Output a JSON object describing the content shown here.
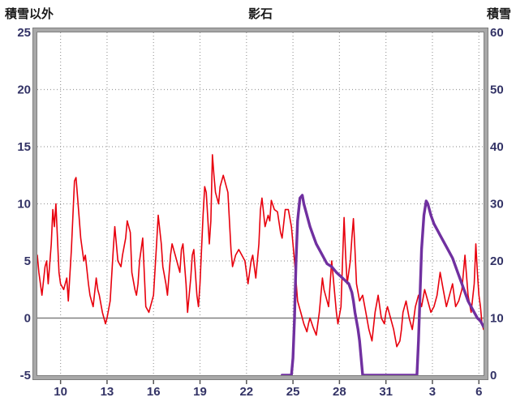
{
  "chart_data": {
    "type": "line",
    "title": "影石",
    "left_axis": {
      "title": "積雪以外",
      "min": -5,
      "max": 25,
      "ticks": [
        25,
        20,
        15,
        10,
        5,
        0,
        -5
      ]
    },
    "right_axis": {
      "title": "積雪",
      "min": 0,
      "max": 60,
      "ticks": [
        60,
        50,
        40,
        30,
        20,
        10,
        0
      ]
    },
    "x_axis": {
      "min": 8.5,
      "max": 37.3,
      "tick_values": [
        10,
        13,
        16,
        19,
        22,
        25,
        28,
        31,
        34,
        37
      ],
      "tick_labels": [
        "10",
        "13",
        "16",
        "19",
        "22",
        "25",
        "28",
        "31",
        "3",
        "6"
      ]
    },
    "grid": {
      "horizontal": true,
      "vertical": true,
      "style": "dotted"
    },
    "zero_line": {
      "left_value": 0
    },
    "legend": "none",
    "colors": {
      "frame": "#a8a8a8",
      "frame_edge": "#7f7f7f",
      "grid": "#9d9d9d",
      "zero_line": "#808080",
      "tick_text": "#333366",
      "title_text": "#1a1a1a",
      "plot_bg": "#ffffff",
      "temperature_line": "#e8000d",
      "snow_line": "#7030a0"
    },
    "series": [
      {
        "name": "積雪以外",
        "axis": "left",
        "color": "#e8000d",
        "stroke_width": 1.6,
        "points": [
          [
            8.5,
            5.5
          ],
          [
            8.6,
            4.0
          ],
          [
            8.8,
            2.0
          ],
          [
            9.0,
            4.5
          ],
          [
            9.1,
            5.0
          ],
          [
            9.2,
            3.0
          ],
          [
            9.4,
            6.5
          ],
          [
            9.5,
            9.5
          ],
          [
            9.6,
            8.0
          ],
          [
            9.7,
            10.0
          ],
          [
            9.8,
            7.0
          ],
          [
            9.9,
            4.0
          ],
          [
            10.0,
            3.0
          ],
          [
            10.2,
            2.5
          ],
          [
            10.4,
            3.5
          ],
          [
            10.5,
            1.5
          ],
          [
            10.7,
            6.0
          ],
          [
            10.8,
            9.0
          ],
          [
            10.9,
            12.0
          ],
          [
            11.0,
            12.3
          ],
          [
            11.1,
            10.5
          ],
          [
            11.3,
            7.0
          ],
          [
            11.5,
            5.0
          ],
          [
            11.6,
            5.5
          ],
          [
            11.8,
            3.0
          ],
          [
            11.9,
            2.0
          ],
          [
            12.0,
            1.5
          ],
          [
            12.1,
            1.0
          ],
          [
            12.3,
            3.5
          ],
          [
            12.4,
            2.5
          ],
          [
            12.5,
            2.0
          ],
          [
            12.7,
            0.5
          ],
          [
            12.9,
            -0.5
          ],
          [
            13.0,
            0.0
          ],
          [
            13.2,
            1.5
          ],
          [
            13.4,
            6.0
          ],
          [
            13.5,
            8.0
          ],
          [
            13.6,
            6.5
          ],
          [
            13.7,
            5.0
          ],
          [
            13.9,
            4.5
          ],
          [
            14.0,
            5.5
          ],
          [
            14.2,
            7.0
          ],
          [
            14.3,
            8.5
          ],
          [
            14.5,
            7.5
          ],
          [
            14.6,
            4.0
          ],
          [
            14.8,
            2.5
          ],
          [
            14.9,
            2.0
          ],
          [
            15.0,
            3.0
          ],
          [
            15.1,
            5.0
          ],
          [
            15.3,
            7.0
          ],
          [
            15.4,
            4.0
          ],
          [
            15.5,
            1.0
          ],
          [
            15.7,
            0.5
          ],
          [
            15.9,
            1.5
          ],
          [
            16.0,
            2.0
          ],
          [
            16.2,
            6.5
          ],
          [
            16.3,
            9.0
          ],
          [
            16.5,
            6.5
          ],
          [
            16.6,
            4.5
          ],
          [
            16.8,
            3.0
          ],
          [
            16.9,
            2.0
          ],
          [
            17.1,
            5.5
          ],
          [
            17.2,
            6.5
          ],
          [
            17.4,
            5.5
          ],
          [
            17.5,
            5.0
          ],
          [
            17.7,
            4.0
          ],
          [
            17.8,
            6.0
          ],
          [
            17.9,
            6.5
          ],
          [
            18.1,
            3.0
          ],
          [
            18.2,
            0.5
          ],
          [
            18.4,
            3.5
          ],
          [
            18.5,
            5.5
          ],
          [
            18.6,
            6.0
          ],
          [
            18.8,
            2.0
          ],
          [
            18.9,
            1.0
          ],
          [
            19.0,
            3.0
          ],
          [
            19.2,
            9.0
          ],
          [
            19.3,
            11.5
          ],
          [
            19.4,
            11.0
          ],
          [
            19.6,
            6.5
          ],
          [
            19.7,
            8.5
          ],
          [
            19.8,
            14.3
          ],
          [
            19.9,
            12.5
          ],
          [
            20.0,
            11.0
          ],
          [
            20.2,
            10.0
          ],
          [
            20.3,
            11.5
          ],
          [
            20.5,
            12.5
          ],
          [
            20.6,
            12.0
          ],
          [
            20.8,
            11.0
          ],
          [
            20.9,
            8.5
          ],
          [
            21.0,
            6.0
          ],
          [
            21.1,
            4.5
          ],
          [
            21.3,
            5.5
          ],
          [
            21.5,
            6.0
          ],
          [
            21.7,
            5.5
          ],
          [
            21.9,
            5.0
          ],
          [
            22.0,
            4.0
          ],
          [
            22.1,
            3.0
          ],
          [
            22.3,
            5.0
          ],
          [
            22.4,
            5.5
          ],
          [
            22.6,
            3.5
          ],
          [
            22.8,
            6.5
          ],
          [
            22.9,
            9.5
          ],
          [
            23.0,
            10.5
          ],
          [
            23.2,
            8.0
          ],
          [
            23.4,
            9.0
          ],
          [
            23.5,
            8.5
          ],
          [
            23.6,
            10.3
          ],
          [
            23.8,
            9.5
          ],
          [
            24.0,
            9.3
          ],
          [
            24.2,
            7.5
          ],
          [
            24.3,
            7.0
          ],
          [
            24.5,
            9.5
          ],
          [
            24.7,
            9.5
          ],
          [
            24.9,
            8.0
          ],
          [
            25.0,
            6.5
          ],
          [
            25.1,
            5.0
          ],
          [
            25.3,
            1.5
          ],
          [
            25.5,
            0.5
          ],
          [
            25.7,
            -0.5
          ],
          [
            25.9,
            -1.2
          ],
          [
            26.0,
            -0.5
          ],
          [
            26.1,
            0.0
          ],
          [
            26.3,
            -0.8
          ],
          [
            26.5,
            -1.5
          ],
          [
            26.7,
            0.5
          ],
          [
            26.9,
            3.5
          ],
          [
            27.0,
            2.5
          ],
          [
            27.1,
            2.0
          ],
          [
            27.3,
            1.0
          ],
          [
            27.5,
            5.0
          ],
          [
            27.6,
            3.5
          ],
          [
            27.8,
            0.5
          ],
          [
            27.9,
            -0.5
          ],
          [
            28.1,
            1.0
          ],
          [
            28.2,
            5.0
          ],
          [
            28.3,
            8.8
          ],
          [
            28.4,
            5.5
          ],
          [
            28.5,
            3.0
          ],
          [
            28.7,
            5.0
          ],
          [
            28.8,
            7.0
          ],
          [
            28.9,
            8.7
          ],
          [
            29.0,
            6.0
          ],
          [
            29.1,
            3.0
          ],
          [
            29.3,
            1.5
          ],
          [
            29.5,
            2.0
          ],
          [
            29.7,
            0.5
          ],
          [
            29.9,
            -1.0
          ],
          [
            30.0,
            -1.5
          ],
          [
            30.1,
            -2.0
          ],
          [
            30.3,
            0.5
          ],
          [
            30.5,
            2.0
          ],
          [
            30.7,
            0.0
          ],
          [
            30.9,
            -0.5
          ],
          [
            31.0,
            0.5
          ],
          [
            31.1,
            1.0
          ],
          [
            31.3,
            0.0
          ],
          [
            31.5,
            -1.0
          ],
          [
            31.7,
            -2.5
          ],
          [
            31.9,
            -2.0
          ],
          [
            32.0,
            -1.0
          ],
          [
            32.1,
            0.5
          ],
          [
            32.3,
            1.5
          ],
          [
            32.5,
            0.0
          ],
          [
            32.7,
            -1.0
          ],
          [
            32.9,
            1.0
          ],
          [
            33.0,
            1.5
          ],
          [
            33.1,
            2.0
          ],
          [
            33.3,
            1.0
          ],
          [
            33.5,
            2.5
          ],
          [
            33.7,
            1.5
          ],
          [
            33.9,
            0.5
          ],
          [
            34.1,
            1.0
          ],
          [
            34.3,
            2.0
          ],
          [
            34.5,
            4.0
          ],
          [
            34.7,
            2.5
          ],
          [
            34.9,
            1.0
          ],
          [
            35.1,
            2.0
          ],
          [
            35.3,
            3.0
          ],
          [
            35.5,
            1.0
          ],
          [
            35.7,
            1.5
          ],
          [
            35.9,
            2.5
          ],
          [
            36.0,
            4.0
          ],
          [
            36.1,
            5.5
          ],
          [
            36.3,
            2.0
          ],
          [
            36.5,
            0.5
          ],
          [
            36.7,
            3.0
          ],
          [
            36.8,
            6.5
          ],
          [
            36.9,
            4.0
          ],
          [
            37.0,
            2.0
          ],
          [
            37.1,
            1.0
          ],
          [
            37.2,
            -0.5
          ],
          [
            37.3,
            -1.0
          ]
        ]
      },
      {
        "name": "積雪",
        "axis": "right",
        "color": "#7030a0",
        "stroke_width": 3.4,
        "points": [
          [
            24.3,
            0
          ],
          [
            24.9,
            0
          ],
          [
            25.0,
            3
          ],
          [
            25.1,
            10
          ],
          [
            25.2,
            20
          ],
          [
            25.3,
            27
          ],
          [
            25.45,
            31
          ],
          [
            25.6,
            31.5
          ],
          [
            25.7,
            30
          ],
          [
            25.9,
            28
          ],
          [
            26.1,
            26
          ],
          [
            26.3,
            24.5
          ],
          [
            26.5,
            23
          ],
          [
            26.7,
            22
          ],
          [
            27.0,
            20.5
          ],
          [
            27.2,
            19.5
          ],
          [
            27.5,
            19
          ],
          [
            27.8,
            18
          ],
          [
            28.0,
            17.5
          ],
          [
            28.2,
            17
          ],
          [
            28.4,
            16.5
          ],
          [
            28.6,
            16
          ],
          [
            28.8,
            14.5
          ],
          [
            28.9,
            13
          ],
          [
            29.0,
            11
          ],
          [
            29.1,
            9.5
          ],
          [
            29.2,
            8
          ],
          [
            29.3,
            6
          ],
          [
            29.4,
            3
          ],
          [
            29.5,
            0
          ],
          [
            33.0,
            0
          ],
          [
            33.1,
            6
          ],
          [
            33.2,
            14
          ],
          [
            33.3,
            22
          ],
          [
            33.45,
            28
          ],
          [
            33.6,
            30.5
          ],
          [
            33.7,
            30
          ],
          [
            33.9,
            28
          ],
          [
            34.1,
            26.5
          ],
          [
            34.3,
            25.5
          ],
          [
            34.5,
            24.5
          ],
          [
            34.7,
            23.5
          ],
          [
            34.9,
            22.5
          ],
          [
            35.1,
            21.5
          ],
          [
            35.3,
            20.5
          ],
          [
            35.5,
            19
          ],
          [
            35.7,
            17.5
          ],
          [
            35.9,
            16
          ],
          [
            36.1,
            14.5
          ],
          [
            36.3,
            13
          ],
          [
            36.5,
            12
          ],
          [
            36.7,
            11
          ],
          [
            36.9,
            10
          ],
          [
            37.1,
            9.5
          ],
          [
            37.3,
            8.5
          ]
        ]
      }
    ]
  }
}
